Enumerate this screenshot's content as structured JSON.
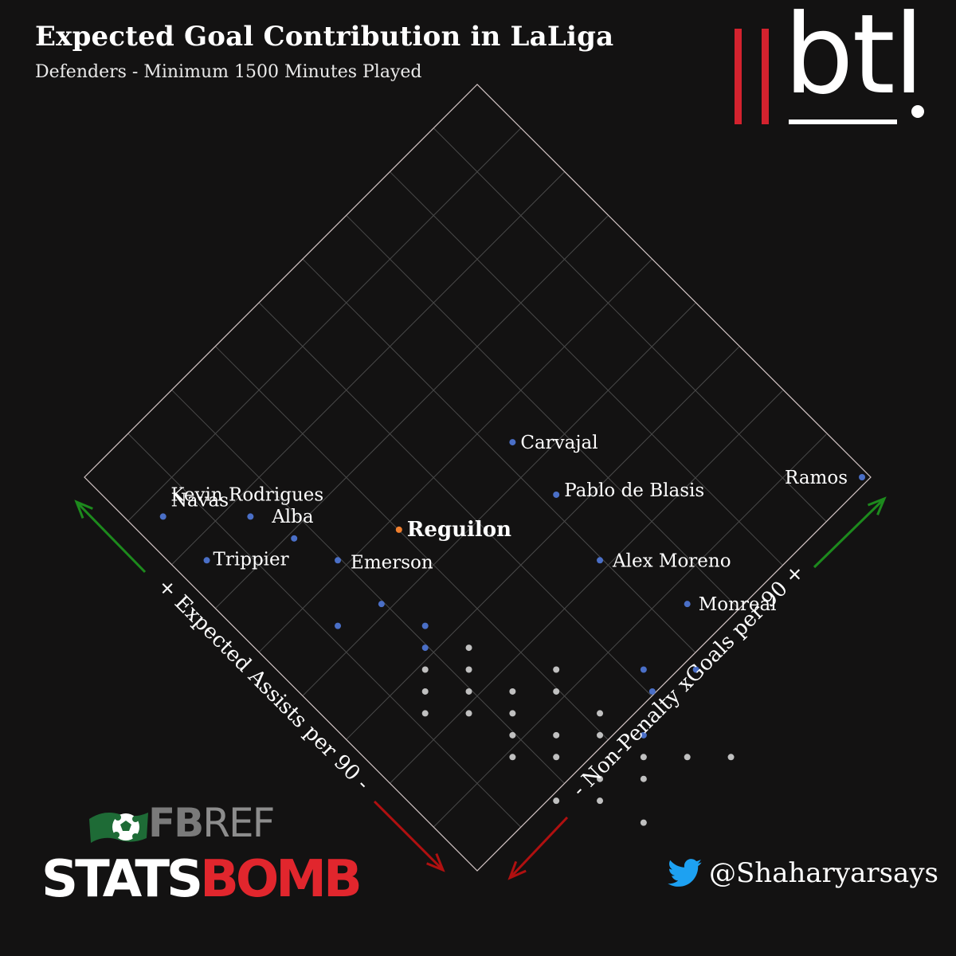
{
  "title": "Expected Goal Contribution in LaLiga",
  "subtitle": "Defenders - Minimum 1500 Minutes Played",
  "logos": {
    "btl": "btl",
    "fbref_fb": "FB",
    "fbref_ref": "REF",
    "statsbomb_a": "STATS",
    "statsbomb_b": "BOMB"
  },
  "twitter_handle": "@Shaharyarsays",
  "colors": {
    "background": "#131212",
    "highlight": "#f07f2e",
    "labeled_point": "#4a6fc7",
    "other_point": "#c0c0c0",
    "arrow_up": "#1d8a1d",
    "arrow_down": "#b01010",
    "grid": "#4a4a4a",
    "border": "#d6c8c8"
  },
  "chart_data": {
    "type": "scatter",
    "axes": {
      "left": "+ Expected Assists per 90 -",
      "right": "- Non-Penalty xGoals per 90 +"
    },
    "grid_cells": 9,
    "grid": true,
    "highlight": "Reguilon",
    "labeled_points": [
      {
        "name": "Ramos",
        "x": 8.9,
        "y": 0.0
      },
      {
        "name": "Monreal",
        "x": 6.9,
        "y": 2.9
      },
      {
        "name": "Alex Moreno",
        "x": 5.9,
        "y": 1.9
      },
      {
        "name": "Pablo de Blasis",
        "x": 5.4,
        "y": 0.4
      },
      {
        "name": "Carvajal",
        "x": 4.9,
        "y": -0.8
      },
      {
        "name": "Reguilon",
        "x": 3.6,
        "y": 1.2
      },
      {
        "name": "Emerson",
        "x": 2.9,
        "y": 1.9
      },
      {
        "name": "Alba",
        "x": 2.4,
        "y": 1.4
      },
      {
        "name": "Kevin Rodrigues",
        "x": 1.9,
        "y": 0.9
      },
      {
        "name": "Trippier",
        "x": 1.4,
        "y": 1.9
      },
      {
        "name": "Navas",
        "x": 0.9,
        "y": 0.9
      }
    ],
    "unlabeled_labeled_color_points": [
      {
        "x": 3.4,
        "y": 2.9
      },
      {
        "x": 2.9,
        "y": 3.4
      },
      {
        "x": 3.9,
        "y": 3.4
      },
      {
        "x": 3.9,
        "y": 3.9
      },
      {
        "x": 6.4,
        "y": 4.4
      },
      {
        "x": 7.0,
        "y": 4.4
      },
      {
        "x": 6.5,
        "y": 4.9
      },
      {
        "x": 6.4,
        "y": 5.9
      }
    ],
    "other_points": [
      {
        "x": 4.4,
        "y": 3.9
      },
      {
        "x": 4.4,
        "y": 4.4
      },
      {
        "x": 4.9,
        "y": 4.9
      },
      {
        "x": 5.4,
        "y": 4.4
      },
      {
        "x": 4.4,
        "y": 4.9
      },
      {
        "x": 3.9,
        "y": 4.4
      },
      {
        "x": 3.9,
        "y": 4.9
      },
      {
        "x": 4.4,
        "y": 5.4
      },
      {
        "x": 3.9,
        "y": 5.4
      },
      {
        "x": 5.4,
        "y": 4.9
      },
      {
        "x": 5.9,
        "y": 5.4
      },
      {
        "x": 4.9,
        "y": 5.4
      },
      {
        "x": 5.4,
        "y": 5.9
      },
      {
        "x": 5.9,
        "y": 5.9
      },
      {
        "x": 5.4,
        "y": 6.4
      },
      {
        "x": 4.9,
        "y": 6.4
      },
      {
        "x": 4.9,
        "y": 5.9
      },
      {
        "x": 6.4,
        "y": 6.4
      },
      {
        "x": 5.9,
        "y": 6.9
      },
      {
        "x": 6.4,
        "y": 6.9
      },
      {
        "x": 5.4,
        "y": 7.4
      },
      {
        "x": 5.9,
        "y": 7.4
      },
      {
        "x": 6.4,
        "y": 7.9
      },
      {
        "x": 6.9,
        "y": 6.4
      },
      {
        "x": 7.4,
        "y": 6.4
      }
    ]
  }
}
